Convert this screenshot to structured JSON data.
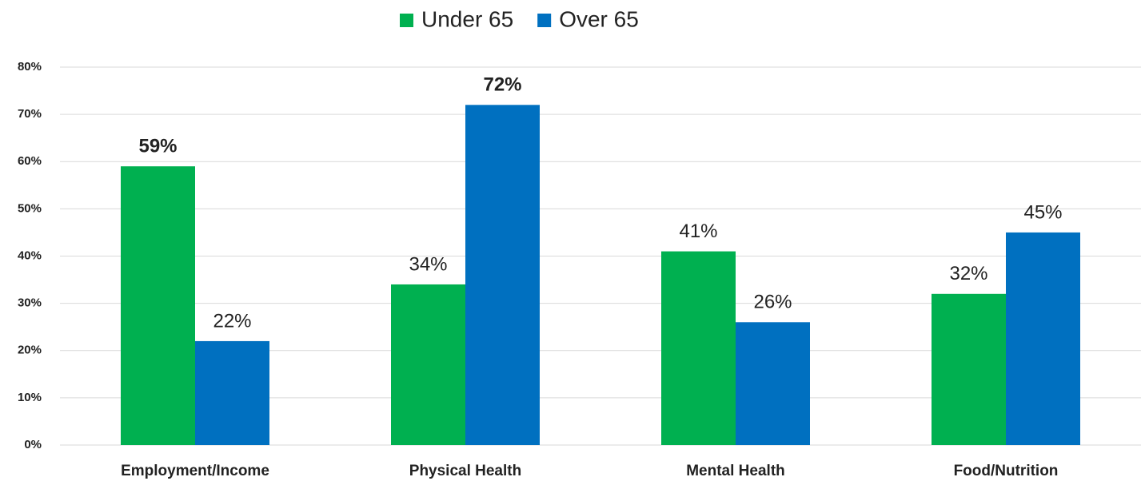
{
  "chart_data": {
    "type": "bar",
    "categories": [
      "Employment/Income",
      "Physical Health",
      "Mental Health",
      "Food/Nutrition"
    ],
    "series": [
      {
        "name": "Under 65",
        "color": "#00b050",
        "values": [
          59,
          34,
          41,
          32
        ],
        "value_labels": [
          "59%",
          "34%",
          "41%",
          "32%"
        ],
        "label_bold": [
          true,
          false,
          false,
          false
        ]
      },
      {
        "name": "Over 65",
        "color": "#0070c0",
        "values": [
          22,
          72,
          26,
          45
        ],
        "value_labels": [
          "22%",
          "72%",
          "26%",
          "45%"
        ],
        "label_bold": [
          false,
          true,
          false,
          false
        ]
      }
    ],
    "ylim": [
      0,
      80
    ],
    "yticks": [
      {
        "value": 0,
        "label": "0%"
      },
      {
        "value": 10,
        "label": "10%"
      },
      {
        "value": 20,
        "label": "20%"
      },
      {
        "value": 30,
        "label": "30%"
      },
      {
        "value": 40,
        "label": "40%"
      },
      {
        "value": 50,
        "label": "50%"
      },
      {
        "value": 60,
        "label": "60%"
      },
      {
        "value": 70,
        "label": "70%"
      },
      {
        "value": 80,
        "label": "80%"
      }
    ],
    "grid": true,
    "legend": "top"
  }
}
